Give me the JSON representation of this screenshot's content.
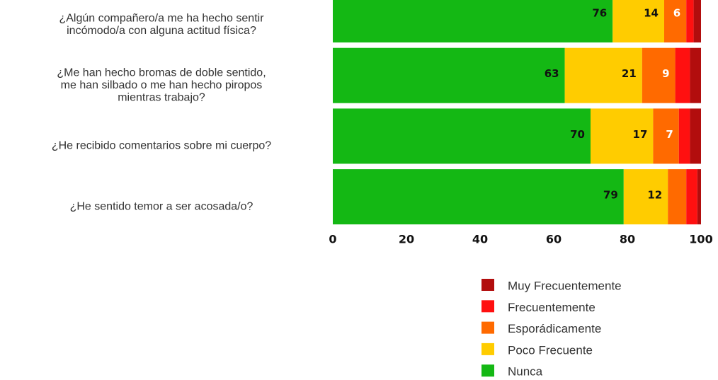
{
  "chart_data": {
    "type": "stacked_barh",
    "categories": [
      [
        "¿Algún compañero/a me ha hecho sentir",
        "incómodo/a con alguna actitud física?"
      ],
      [
        "¿Me han hecho bromas de doble sentido,",
        "me han silbado o me han hecho piropos",
        "mientras trabajo?"
      ],
      [
        "¿He recibido comentarios sobre mi cuerpo?"
      ],
      [
        "¿He sentido temor a ser acosada/o?"
      ]
    ],
    "series": [
      {
        "name": "Nunca",
        "color": "#14b814",
        "values": [
          76,
          63,
          70,
          79
        ]
      },
      {
        "name": "Poco Frecuente",
        "color": "#ffcc00",
        "values": [
          14,
          21,
          17,
          12
        ]
      },
      {
        "name": "Esporádicamente",
        "color": "#ff6a00",
        "values": [
          6,
          9,
          7,
          5
        ]
      },
      {
        "name": "Frecuentemente",
        "color": "#ff1010",
        "values": [
          2,
          4,
          3,
          3
        ]
      },
      {
        "name": "Muy Frecuentemente",
        "color": "#b20d0d",
        "values": [
          2,
          3,
          3,
          1
        ]
      }
    ],
    "xlim": [
      0,
      100
    ],
    "xticks": [
      0,
      20,
      40,
      60,
      80,
      100
    ],
    "grid": false
  }
}
